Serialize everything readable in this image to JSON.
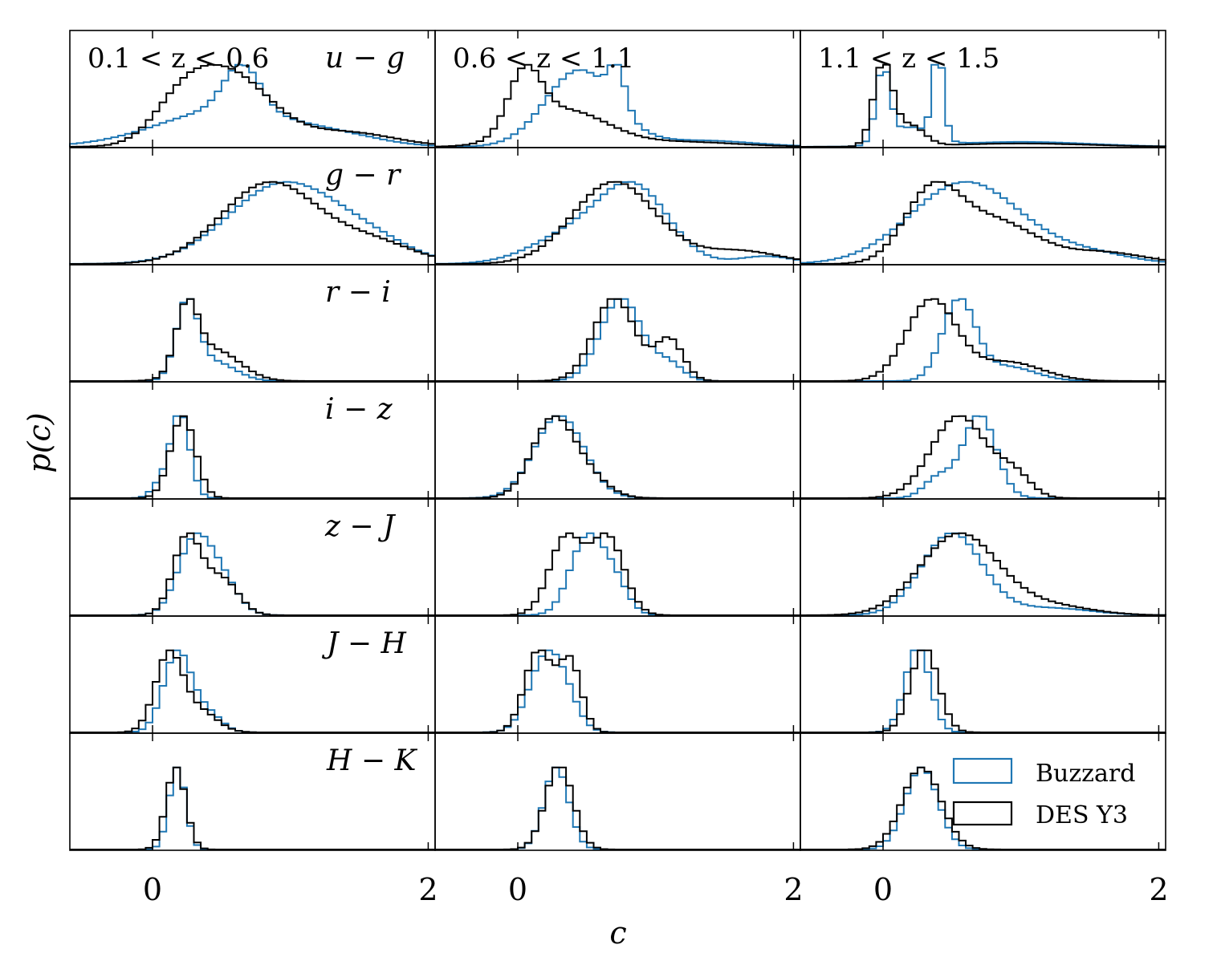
{
  "chart_data": {
    "type": "histogram-grid",
    "title": "",
    "xlabel": "c",
    "ylabel": "p(c)",
    "xlim": [
      -0.6,
      2.05
    ],
    "xticks": [
      0,
      2
    ],
    "xtick_labels": [
      "0",
      "2"
    ],
    "columns": [
      "0.1 < z < 0.6",
      "0.6 < z < 1.1",
      "1.1 < z < 1.5"
    ],
    "rows": [
      "u − g",
      "g − r",
      "r − i",
      "i − z",
      "z − J",
      "J − H",
      "H − K"
    ],
    "legend": {
      "location": "lower-right panel",
      "entries": [
        {
          "label": "Buzzard",
          "color": "#1f77b4"
        },
        {
          "label": "DES Y3",
          "color": "#000000"
        }
      ]
    },
    "series_colors": {
      "Buzzard": "#1f77b4",
      "DES Y3": "#000000"
    },
    "distribution_params": [
      [
        {
          "buzzard": [
            [
              0.65,
              0.13,
              0.55
            ],
            [
              0.55,
              0.5,
              0.45
            ],
            [
              1.4,
              0.3,
              0.08
            ]
          ],
          "des": [
            [
              0.55,
              0.3,
              0.5
            ],
            [
              0.2,
              0.2,
              0.2
            ],
            [
              1.4,
              0.35,
              0.1
            ]
          ]
        },
        {
          "buzzard": [
            [
              0.95,
              0.4,
              0.7
            ],
            [
              1.6,
              0.3,
              0.15
            ]
          ],
          "des": [
            [
              0.85,
              0.35,
              0.7
            ],
            [
              1.6,
              0.3,
              0.18
            ]
          ]
        },
        {
          "buzzard": [
            [
              0.25,
              0.08,
              1.0
            ],
            [
              0.45,
              0.15,
              0.25
            ]
          ],
          "des": [
            [
              0.25,
              0.08,
              0.85
            ],
            [
              0.45,
              0.18,
              0.4
            ]
          ]
        },
        {
          "buzzard": [
            [
              0.2,
              0.07,
              1.0
            ],
            [
              0.05,
              0.06,
              0.15
            ]
          ],
          "des": [
            [
              0.22,
              0.09,
              0.85
            ]
          ]
        },
        {
          "buzzard": [
            [
              0.3,
              0.12,
              0.75
            ],
            [
              0.5,
              0.12,
              0.35
            ]
          ],
          "des": [
            [
              0.25,
              0.1,
              0.85
            ],
            [
              0.5,
              0.12,
              0.4
            ]
          ]
        },
        {
          "buzzard": [
            [
              0.18,
              0.1,
              0.85
            ],
            [
              0.4,
              0.1,
              0.2
            ]
          ],
          "des": [
            [
              0.12,
              0.1,
              0.95
            ],
            [
              0.35,
              0.12,
              0.25
            ]
          ]
        },
        {
          "buzzard": [
            [
              0.18,
              0.06,
              1.0
            ]
          ],
          "des": [
            [
              0.17,
              0.07,
              0.9
            ]
          ]
        }
      ],
      [
        {
          "buzzard": [
            [
              0.45,
              0.25,
              0.6
            ],
            [
              0.72,
              0.06,
              0.3
            ],
            [
              1.3,
              0.4,
              0.05
            ]
          ],
          "des": [
            [
              0.05,
              0.12,
              0.75
            ],
            [
              0.35,
              0.3,
              0.45
            ],
            [
              1.2,
              0.4,
              0.06
            ]
          ]
        },
        {
          "buzzard": [
            [
              0.85,
              0.25,
              0.75
            ],
            [
              0.4,
              0.3,
              0.3
            ],
            [
              1.8,
              0.2,
              0.08
            ]
          ],
          "des": [
            [
              0.7,
              0.3,
              0.75
            ],
            [
              1.6,
              0.3,
              0.12
            ]
          ]
        },
        {
          "buzzard": [
            [
              0.75,
              0.15,
              1.0
            ],
            [
              1.1,
              0.1,
              0.2
            ]
          ],
          "des": [
            [
              0.7,
              0.15,
              0.8
            ],
            [
              1.1,
              0.1,
              0.4
            ]
          ]
        },
        {
          "buzzard": [
            [
              0.3,
              0.18,
              0.95
            ]
          ],
          "des": [
            [
              0.25,
              0.15,
              0.95
            ],
            [
              0.5,
              0.15,
              0.25
            ]
          ]
        },
        {
          "buzzard": [
            [
              0.5,
              0.12,
              1.0
            ],
            [
              0.7,
              0.1,
              0.4
            ]
          ],
          "des": [
            [
              0.35,
              0.12,
              0.7
            ],
            [
              0.65,
              0.12,
              0.7
            ]
          ]
        },
        {
          "buzzard": [
            [
              0.2,
              0.12,
              0.9
            ],
            [
              0.35,
              0.1,
              0.3
            ]
          ],
          "des": [
            [
              0.15,
              0.1,
              0.7
            ],
            [
              0.38,
              0.08,
              0.6
            ]
          ]
        },
        {
          "buzzard": [
            [
              0.28,
              0.09,
              1.0
            ]
          ],
          "des": [
            [
              0.3,
              0.1,
              0.95
            ]
          ]
        }
      ],
      [
        {
          "buzzard": [
            [
              0.0,
              0.05,
              0.6
            ],
            [
              0.4,
              0.04,
              0.7
            ],
            [
              0.2,
              0.15,
              0.15
            ],
            [
              1.0,
              0.5,
              0.04
            ]
          ],
          "des": [
            [
              0.0,
              0.07,
              1.0
            ],
            [
              0.2,
              0.1,
              0.25
            ],
            [
              1.0,
              0.5,
              0.04
            ]
          ]
        },
        {
          "buzzard": [
            [
              0.6,
              0.4,
              0.85
            ],
            [
              1.5,
              0.3,
              0.1
            ]
          ],
          "des": [
            [
              0.35,
              0.2,
              0.7
            ],
            [
              0.8,
              0.3,
              0.45
            ],
            [
              1.6,
              0.3,
              0.12
            ]
          ]
        },
        {
          "buzzard": [
            [
              0.55,
              0.12,
              1.0
            ],
            [
              0.9,
              0.2,
              0.18
            ]
          ],
          "des": [
            [
              0.35,
              0.18,
              0.85
            ],
            [
              0.9,
              0.25,
              0.2
            ]
          ]
        },
        {
          "buzzard": [
            [
              0.7,
              0.12,
              1.0
            ],
            [
              0.4,
              0.1,
              0.25
            ]
          ],
          "des": [
            [
              0.55,
              0.2,
              0.75
            ],
            [
              0.95,
              0.12,
              0.2
            ]
          ]
        },
        {
          "buzzard": [
            [
              0.5,
              0.22,
              0.9
            ],
            [
              1.2,
              0.3,
              0.08
            ]
          ],
          "des": [
            [
              0.55,
              0.28,
              0.85
            ],
            [
              1.2,
              0.3,
              0.1
            ]
          ]
        },
        {
          "buzzard": [
            [
              0.25,
              0.09,
              1.0
            ]
          ],
          "des": [
            [
              0.3,
              0.1,
              0.8
            ]
          ]
        },
        {
          "buzzard": [
            [
              0.28,
              0.12,
              0.95
            ]
          ],
          "des": [
            [
              0.28,
              0.14,
              0.9
            ]
          ]
        }
      ]
    ]
  }
}
